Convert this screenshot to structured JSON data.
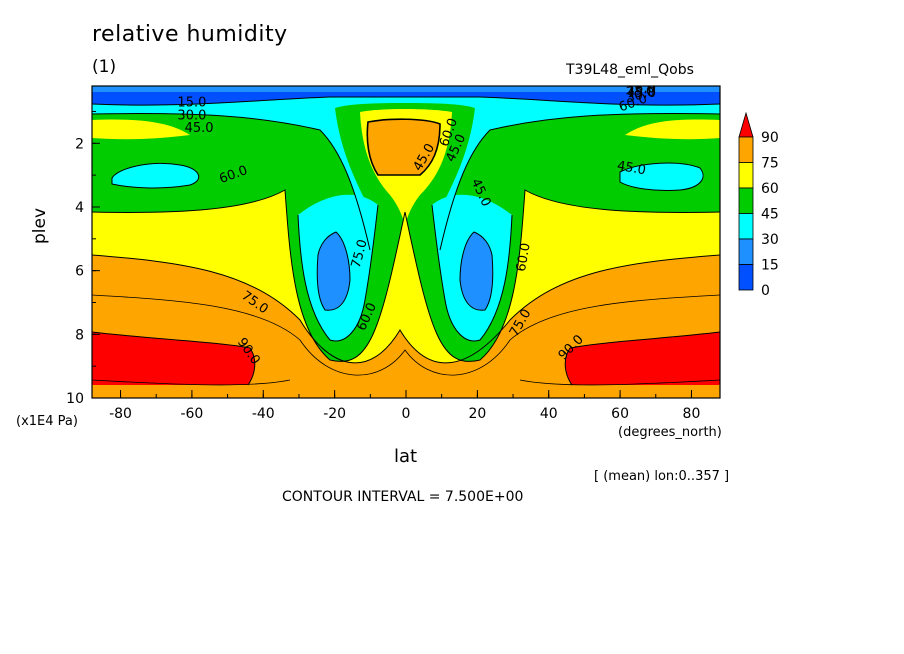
{
  "header": {
    "title": "relative humidity",
    "subtitle": "(1)",
    "run_name": "T39L48_eml_Qobs"
  },
  "footer": {
    "mean_note": "[ (mean) lon:0..357 ]",
    "contour_interval": "CONTOUR INTERVAL = 7.500E+00"
  },
  "chart_data": {
    "type": "heatmap",
    "title": "relative humidity",
    "xlabel": "lat",
    "xunit": "(degrees_north)",
    "ylabel": "plev",
    "yunit": "(×1E4 Pa)",
    "xlim": [
      -88,
      88
    ],
    "ylim": [
      10,
      0.2
    ],
    "x_ticks": [
      "-80",
      "-60",
      "-40",
      "-20",
      "0",
      "20",
      "40",
      "60",
      "80"
    ],
    "x_tick_values": [
      -80,
      -60,
      -40,
      -20,
      0,
      20,
      40,
      60,
      80
    ],
    "y_ticks": [
      "2",
      "4",
      "6",
      "8",
      "10"
    ],
    "y_tick_values": [
      2,
      4,
      6,
      8,
      10
    ],
    "y_unit_label": "(x1E4 Pa)",
    "x_unit_label": "(degrees_north)",
    "colorbar": {
      "levels": [
        "90",
        "75",
        "60",
        "45",
        "30",
        "15",
        "0"
      ],
      "colors": [
        "#ff0000",
        "#ffa500",
        "#ffff00",
        "#00cc00",
        "#00ffff",
        "#1e90ff",
        "#0050ff"
      ]
    },
    "contour_labels": [
      "15.0",
      "30.0",
      "45.0",
      "60.0",
      "75.0",
      "90.0",
      "60.0",
      "75.0",
      "45.0",
      "45.0",
      "60.0",
      "45.0",
      "75.0",
      "60.0",
      "45.0",
      "60.0",
      "75.0",
      "90.0",
      "45.0",
      "30.0",
      "15.0"
    ]
  }
}
